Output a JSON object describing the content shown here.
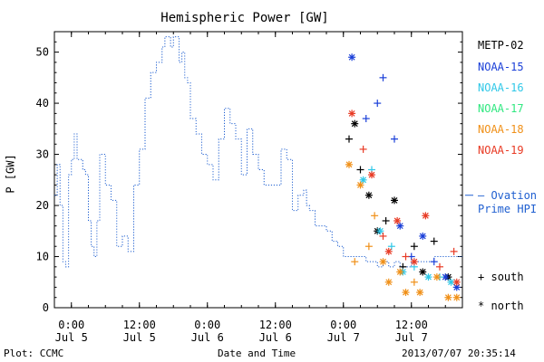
{
  "chart_data": {
    "type": "scatter",
    "title": "Hemispheric Power [GW]",
    "xlabel": "Date and Time",
    "ylabel": "P [GW]",
    "ylim": [
      0,
      54
    ],
    "yticks": [
      0,
      10,
      20,
      30,
      40,
      50
    ],
    "xlim": [
      "2013-07-04 21:00",
      "2013-07-07 21:00"
    ],
    "xticks": [
      {
        "t": "2013-07-05 00:00",
        "label1": "0:00",
        "label2": "Jul 5"
      },
      {
        "t": "2013-07-05 12:00",
        "label1": "12:00",
        "label2": "Jul 5"
      },
      {
        "t": "2013-07-06 00:00",
        "label1": "0:00",
        "label2": "Jul 6"
      },
      {
        "t": "2013-07-06 12:00",
        "label1": "12:00",
        "label2": "Jul 6"
      },
      {
        "t": "2013-07-07 00:00",
        "label1": "0:00",
        "label2": "Jul 7"
      },
      {
        "t": "2013-07-07 12:00",
        "label1": "12:00",
        "label2": "Jul 7"
      }
    ],
    "ovation_label": [
      "— Ovation",
      "Prime HPI"
    ],
    "ovation_color": "#1f5fd0",
    "ovation_hpi": {
      "x": [
        "2013-07-04 21:00",
        "2013-07-04 21:30",
        "2013-07-04 22:00",
        "2013-07-04 22:30",
        "2013-07-04 23:00",
        "2013-07-04 23:30",
        "2013-07-05 00:00",
        "2013-07-05 00:30",
        "2013-07-05 01:00",
        "2013-07-05 02:00",
        "2013-07-05 02:30",
        "2013-07-05 03:00",
        "2013-07-05 03:30",
        "2013-07-05 04:00",
        "2013-07-05 04:30",
        "2013-07-05 05:00",
        "2013-07-05 06:00",
        "2013-07-05 07:00",
        "2013-07-05 08:00",
        "2013-07-05 09:00",
        "2013-07-05 10:00",
        "2013-07-05 11:00",
        "2013-07-05 12:00",
        "2013-07-05 13:00",
        "2013-07-05 14:00",
        "2013-07-05 15:00",
        "2013-07-05 16:00",
        "2013-07-05 16:30",
        "2013-07-05 17:00",
        "2013-07-05 17:30",
        "2013-07-05 18:00",
        "2013-07-05 19:00",
        "2013-07-05 19:30",
        "2013-07-05 20:00",
        "2013-07-05 20:30",
        "2013-07-05 21:00",
        "2013-07-05 22:00",
        "2013-07-05 23:00",
        "2013-07-06 00:00",
        "2013-07-06 01:00",
        "2013-07-06 02:00",
        "2013-07-06 03:00",
        "2013-07-06 04:00",
        "2013-07-06 05:00",
        "2013-07-06 06:00",
        "2013-07-06 07:00",
        "2013-07-06 08:00",
        "2013-07-06 09:00",
        "2013-07-06 10:00",
        "2013-07-06 11:00",
        "2013-07-06 12:00",
        "2013-07-06 13:00",
        "2013-07-06 14:00",
        "2013-07-06 15:00",
        "2013-07-06 16:00",
        "2013-07-06 17:00",
        "2013-07-06 17:30",
        "2013-07-06 18:00",
        "2013-07-06 19:00",
        "2013-07-06 20:00",
        "2013-07-06 21:00",
        "2013-07-06 22:00",
        "2013-07-06 23:00",
        "2013-07-07 00:00",
        "2013-07-07 01:00",
        "2013-07-07 02:00",
        "2013-07-07 03:00",
        "2013-07-07 04:00",
        "2013-07-07 05:00",
        "2013-07-07 06:00",
        "2013-07-07 07:00",
        "2013-07-07 08:00",
        "2013-07-07 09:00",
        "2013-07-07 10:00",
        "2013-07-07 11:00",
        "2013-07-07 12:00",
        "2013-07-07 13:00",
        "2013-07-07 14:00",
        "2013-07-07 15:00",
        "2013-07-07 16:00",
        "2013-07-07 17:00",
        "2013-07-07 18:00",
        "2013-07-07 19:00",
        "2013-07-07 20:00",
        "2013-07-07 21:00"
      ],
      "y": [
        22,
        28,
        20,
        9,
        8,
        26,
        29,
        34,
        29,
        27,
        26,
        17,
        12,
        10,
        17,
        30,
        24,
        21,
        12,
        14,
        11,
        24,
        31,
        41,
        46,
        48,
        51,
        53,
        53,
        51,
        53,
        48,
        50,
        45,
        44,
        37,
        34,
        30,
        28,
        25,
        33,
        39,
        36,
        33,
        26,
        35,
        30,
        27,
        24,
        24,
        24,
        31,
        29,
        19,
        22,
        23,
        20,
        19,
        16,
        16,
        15,
        13,
        12,
        10,
        10,
        10,
        10,
        9,
        9,
        8,
        9,
        8,
        9,
        8,
        8,
        9,
        9,
        9,
        9,
        10,
        10,
        10,
        10,
        10,
        10
      ]
    },
    "series": [
      {
        "name": "METP-02",
        "color": "#000000",
        "points": [
          {
            "x": "2013-07-07 01:00",
            "y": 33,
            "m": "south"
          },
          {
            "x": "2013-07-07 02:00",
            "y": 36,
            "m": "north"
          },
          {
            "x": "2013-07-07 03:00",
            "y": 27,
            "m": "south"
          },
          {
            "x": "2013-07-07 04:30",
            "y": 22,
            "m": "north"
          },
          {
            "x": "2013-07-07 06:00",
            "y": 15,
            "m": "north"
          },
          {
            "x": "2013-07-07 07:30",
            "y": 17,
            "m": "south"
          },
          {
            "x": "2013-07-07 09:00",
            "y": 21,
            "m": "north"
          },
          {
            "x": "2013-07-07 10:30",
            "y": 8,
            "m": "south"
          },
          {
            "x": "2013-07-07 12:30",
            "y": 12,
            "m": "south"
          },
          {
            "x": "2013-07-07 14:00",
            "y": 7,
            "m": "north"
          },
          {
            "x": "2013-07-07 16:00",
            "y": 13,
            "m": "south"
          },
          {
            "x": "2013-07-07 18:30",
            "y": 6,
            "m": "north"
          }
        ]
      },
      {
        "name": "NOAA-15",
        "color": "#1a3fd8",
        "points": [
          {
            "x": "2013-07-07 01:30",
            "y": 49,
            "m": "north"
          },
          {
            "x": "2013-07-07 04:00",
            "y": 37,
            "m": "south"
          },
          {
            "x": "2013-07-07 06:00",
            "y": 40,
            "m": "south"
          },
          {
            "x": "2013-07-07 07:00",
            "y": 45,
            "m": "south"
          },
          {
            "x": "2013-07-07 09:00",
            "y": 33,
            "m": "south"
          },
          {
            "x": "2013-07-07 10:00",
            "y": 16,
            "m": "north"
          },
          {
            "x": "2013-07-07 12:00",
            "y": 10,
            "m": "south"
          },
          {
            "x": "2013-07-07 14:00",
            "y": 14,
            "m": "north"
          },
          {
            "x": "2013-07-07 16:00",
            "y": 9,
            "m": "south"
          },
          {
            "x": "2013-07-07 18:00",
            "y": 6,
            "m": "north"
          },
          {
            "x": "2013-07-07 20:00",
            "y": 4,
            "m": "north"
          }
        ]
      },
      {
        "name": "NOAA-16",
        "color": "#30c8e8",
        "points": [
          {
            "x": "2013-07-07 03:30",
            "y": 25,
            "m": "north"
          },
          {
            "x": "2013-07-07 05:00",
            "y": 27,
            "m": "south"
          },
          {
            "x": "2013-07-07 06:30",
            "y": 15,
            "m": "north"
          },
          {
            "x": "2013-07-07 08:30",
            "y": 12,
            "m": "south"
          },
          {
            "x": "2013-07-07 10:30",
            "y": 7,
            "m": "north"
          },
          {
            "x": "2013-07-07 12:30",
            "y": 8,
            "m": "south"
          },
          {
            "x": "2013-07-07 15:00",
            "y": 6,
            "m": "north"
          },
          {
            "x": "2013-07-07 17:00",
            "y": 6,
            "m": "south"
          },
          {
            "x": "2013-07-07 19:00",
            "y": 5,
            "m": "north"
          }
        ]
      },
      {
        "name": "NOAA-17",
        "color": "#30e880",
        "points": []
      },
      {
        "name": "NOAA-18",
        "color": "#f09018",
        "points": [
          {
            "x": "2013-07-07 01:00",
            "y": 28,
            "m": "north"
          },
          {
            "x": "2013-07-07 02:00",
            "y": 9,
            "m": "south"
          },
          {
            "x": "2013-07-07 03:00",
            "y": 24,
            "m": "north"
          },
          {
            "x": "2013-07-07 04:30",
            "y": 12,
            "m": "south"
          },
          {
            "x": "2013-07-07 05:30",
            "y": 18,
            "m": "south"
          },
          {
            "x": "2013-07-07 07:00",
            "y": 9,
            "m": "north"
          },
          {
            "x": "2013-07-07 08:00",
            "y": 5,
            "m": "north"
          },
          {
            "x": "2013-07-07 10:00",
            "y": 7,
            "m": "north"
          },
          {
            "x": "2013-07-07 11:00",
            "y": 3,
            "m": "north"
          },
          {
            "x": "2013-07-07 12:30",
            "y": 5,
            "m": "south"
          },
          {
            "x": "2013-07-07 13:30",
            "y": 3,
            "m": "north"
          },
          {
            "x": "2013-07-07 16:30",
            "y": 6,
            "m": "north"
          },
          {
            "x": "2013-07-07 18:30",
            "y": 2,
            "m": "north"
          },
          {
            "x": "2013-07-07 20:00",
            "y": 2,
            "m": "north"
          }
        ]
      },
      {
        "name": "NOAA-19",
        "color": "#e83a24",
        "points": [
          {
            "x": "2013-07-07 01:30",
            "y": 38,
            "m": "north"
          },
          {
            "x": "2013-07-07 03:30",
            "y": 31,
            "m": "south"
          },
          {
            "x": "2013-07-07 05:00",
            "y": 26,
            "m": "north"
          },
          {
            "x": "2013-07-07 07:00",
            "y": 14,
            "m": "south"
          },
          {
            "x": "2013-07-07 08:00",
            "y": 11,
            "m": "north"
          },
          {
            "x": "2013-07-07 09:30",
            "y": 17,
            "m": "north"
          },
          {
            "x": "2013-07-07 11:00",
            "y": 10,
            "m": "south"
          },
          {
            "x": "2013-07-07 12:30",
            "y": 9,
            "m": "north"
          },
          {
            "x": "2013-07-07 14:30",
            "y": 18,
            "m": "north"
          },
          {
            "x": "2013-07-07 17:00",
            "y": 8,
            "m": "south"
          },
          {
            "x": "2013-07-07 19:30",
            "y": 11,
            "m": "south"
          },
          {
            "x": "2013-07-07 20:00",
            "y": 5,
            "m": "north"
          }
        ]
      }
    ],
    "marker_legend": [
      {
        "symbol": "+",
        "label": "south"
      },
      {
        "symbol": "*",
        "label": "north"
      }
    ]
  },
  "footer": {
    "left": "Plot: CCMC",
    "right": "2013/07/07 20:35:14"
  }
}
